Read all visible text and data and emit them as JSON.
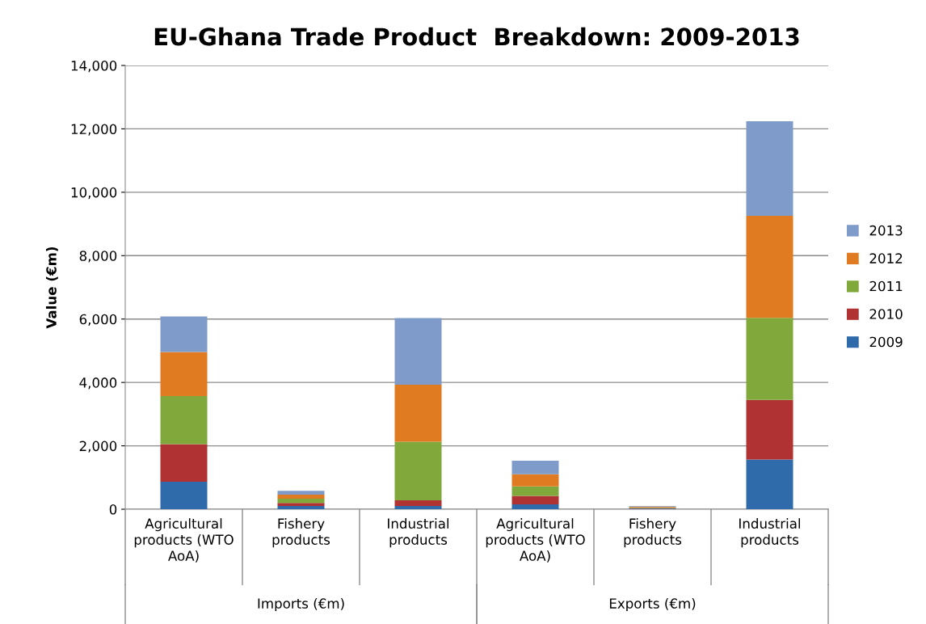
{
  "chart_data": {
    "type": "bar",
    "title": "EU-Ghana Trade Product  Breakdown: 2009-2013",
    "ylabel": "Value (€m)",
    "categories": [
      "Agricultural products (WTO AoA)",
      "Fishery products",
      "Industrial products",
      "Agricultural products (WTO AoA)",
      "Fishery products",
      "Industrial products"
    ],
    "series": [
      {
        "name": "2009",
        "color": "#2f6aaa",
        "values": [
          870,
          100,
          100,
          150,
          20,
          1570
        ]
      },
      {
        "name": "2010",
        "color": "#b03232",
        "values": [
          1180,
          100,
          180,
          270,
          20,
          1880
        ]
      },
      {
        "name": "2011",
        "color": "#80a83a",
        "values": [
          1520,
          130,
          1850,
          300,
          20,
          2590
        ]
      },
      {
        "name": "2012",
        "color": "#e07b22",
        "values": [
          1390,
          130,
          1800,
          380,
          20,
          3220
        ]
      },
      {
        "name": "2013",
        "color": "#7f9bc9",
        "values": [
          1120,
          120,
          2100,
          430,
          20,
          2980
        ]
      }
    ],
    "stacked": true,
    "ylim": [
      0,
      14000
    ],
    "yticks": [
      {
        "value": 0,
        "label": "0"
      },
      {
        "value": 2000,
        "label": "2,000"
      },
      {
        "value": 4000,
        "label": "4,000"
      },
      {
        "value": 6000,
        "label": "6,000"
      },
      {
        "value": 8000,
        "label": "8,000"
      },
      {
        "value": 10000,
        "label": "10,000"
      },
      {
        "value": 12000,
        "label": "12,000"
      },
      {
        "value": 14000,
        "label": "14,000"
      }
    ],
    "grid": "y",
    "legend": "right",
    "annotations": [
      "Imports (€m)",
      "Exports (€m)"
    ]
  }
}
